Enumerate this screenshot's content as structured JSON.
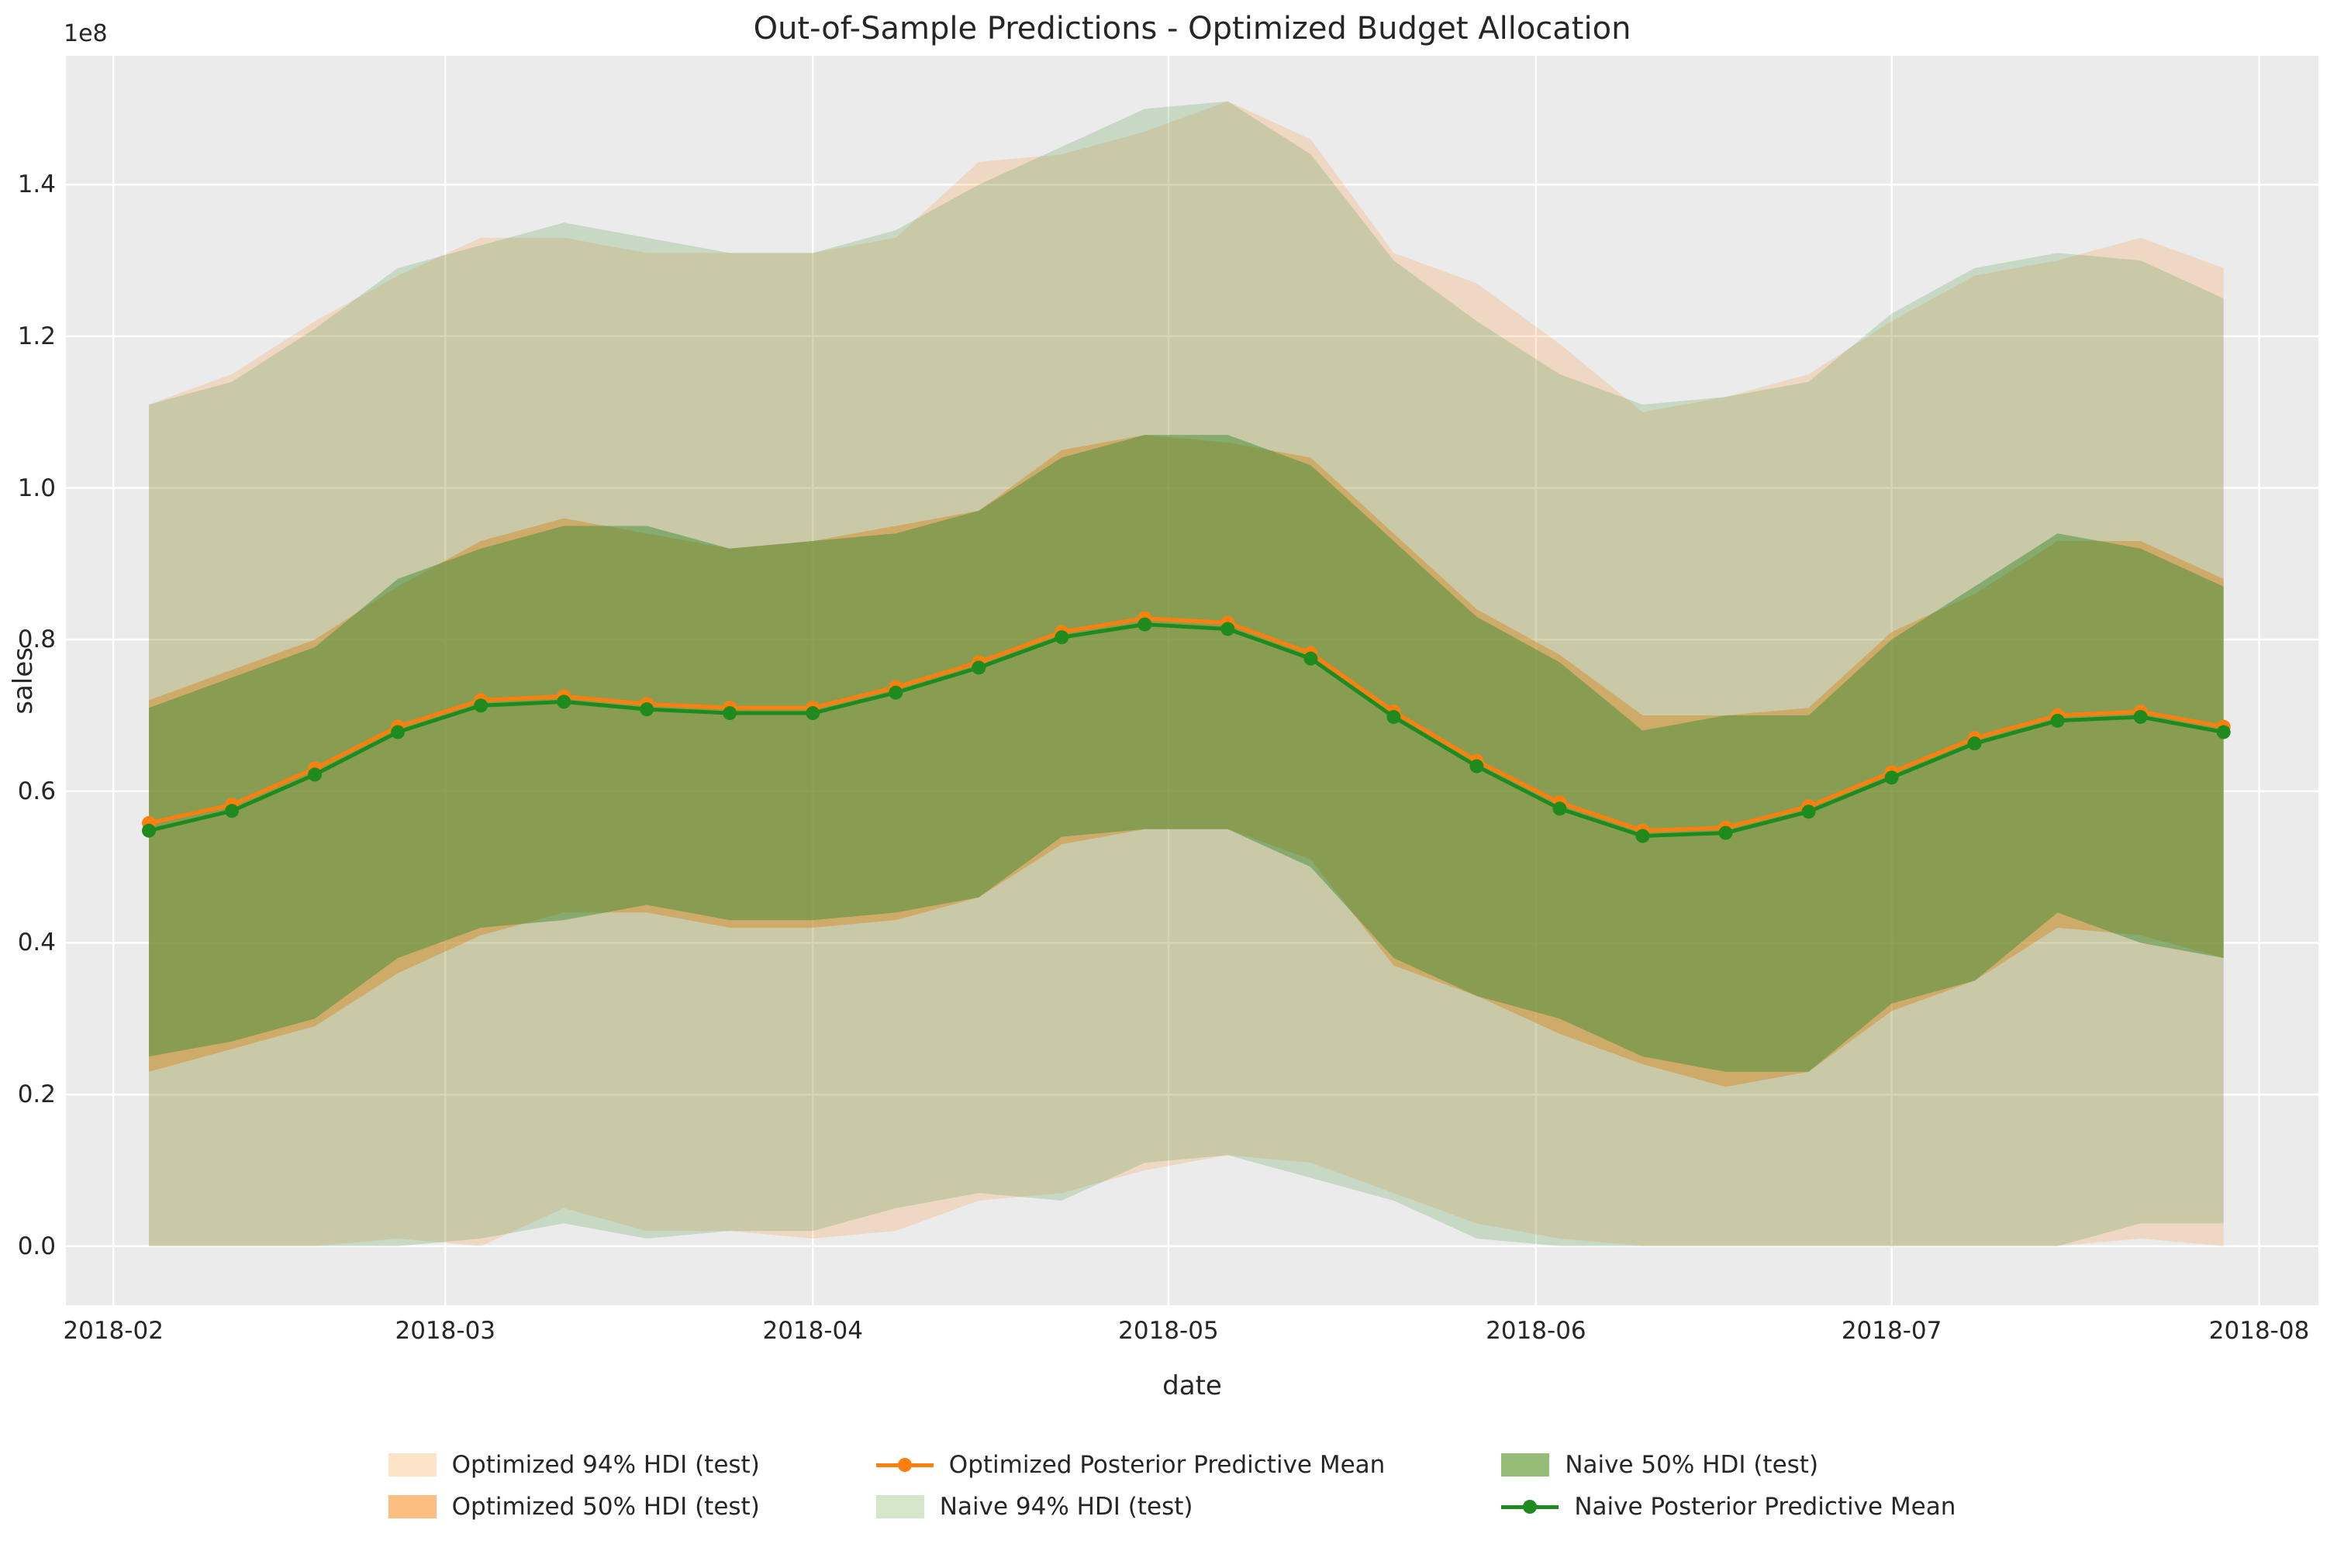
{
  "chart_data": {
    "type": "line",
    "title": "Out-of-Sample Predictions - Optimized Budget Allocation",
    "xlabel": "date",
    "ylabel": "sales",
    "y_offset_label": "1e8",
    "background_color": "#ebebeb",
    "grid_color": "#ffffff",
    "x_tick_labels": [
      "2018-02",
      "2018-03",
      "2018-04",
      "2018-05",
      "2018-06",
      "2018-07",
      "2018-08"
    ],
    "x_tick_days": [
      0,
      28,
      59,
      89,
      120,
      150,
      181
    ],
    "y_tick_labels": [
      "0.0",
      "0.2",
      "0.4",
      "0.6",
      "0.8",
      "1.0",
      "1.2",
      "1.4"
    ],
    "y_tick_values": [
      0.0,
      0.2,
      0.4,
      0.6,
      0.8,
      1.0,
      1.2,
      1.4
    ],
    "x_domain": [
      -4,
      186
    ],
    "y_domain": [
      -0.078,
      1.57
    ],
    "x_dates": [
      "2018-02-04",
      "2018-02-11",
      "2018-02-18",
      "2018-02-25",
      "2018-03-04",
      "2018-03-11",
      "2018-03-18",
      "2018-03-25",
      "2018-04-01",
      "2018-04-08",
      "2018-04-15",
      "2018-04-22",
      "2018-04-29",
      "2018-05-06",
      "2018-05-13",
      "2018-05-20",
      "2018-05-27",
      "2018-06-03",
      "2018-06-10",
      "2018-06-17",
      "2018-06-24",
      "2018-07-01",
      "2018-07-08",
      "2018-07-15",
      "2018-07-22",
      "2018-07-29"
    ],
    "x_days": [
      3,
      10,
      17,
      24,
      31,
      38,
      45,
      52,
      59,
      66,
      73,
      80,
      87,
      94,
      101,
      108,
      115,
      122,
      129,
      136,
      143,
      150,
      157,
      164,
      171,
      178
    ],
    "units": "1e8 sales",
    "series": [
      {
        "name": "Optimized Posterior Predictive Mean",
        "color": "#ff7f0e",
        "values": [
          0.558,
          0.582,
          0.63,
          0.685,
          0.72,
          0.725,
          0.715,
          0.71,
          0.71,
          0.737,
          0.77,
          0.81,
          0.828,
          0.822,
          0.782,
          0.705,
          0.64,
          0.585,
          0.548,
          0.552,
          0.58,
          0.625,
          0.67,
          0.7,
          0.705,
          0.685
        ]
      },
      {
        "name": "Naive Posterior Predictive Mean",
        "color": "#1f8b1f",
        "values": [
          0.548,
          0.574,
          0.622,
          0.678,
          0.713,
          0.718,
          0.708,
          0.703,
          0.703,
          0.73,
          0.763,
          0.803,
          0.82,
          0.814,
          0.775,
          0.698,
          0.633,
          0.577,
          0.541,
          0.545,
          0.573,
          0.618,
          0.663,
          0.693,
          0.698,
          0.678
        ]
      }
    ],
    "bands": [
      {
        "name": "Optimized 94% HDI (test)",
        "color": "#ff7f0e",
        "opacity": 0.18,
        "lower": [
          0.0,
          0.0,
          0.0,
          0.01,
          0.0,
          0.05,
          0.02,
          0.02,
          0.01,
          0.02,
          0.06,
          0.07,
          0.1,
          0.12,
          0.11,
          0.07,
          0.03,
          0.01,
          0.0,
          0.0,
          0.0,
          0.0,
          0.0,
          0.0,
          0.01,
          0.0
        ],
        "upper": [
          1.11,
          1.15,
          1.22,
          1.28,
          1.33,
          1.33,
          1.31,
          1.31,
          1.31,
          1.33,
          1.43,
          1.44,
          1.47,
          1.51,
          1.46,
          1.31,
          1.27,
          1.19,
          1.1,
          1.12,
          1.15,
          1.22,
          1.28,
          1.3,
          1.33,
          1.29
        ]
      },
      {
        "name": "Optimized 50% HDI (test)",
        "color": "#ff7f0e",
        "opacity": 0.45,
        "lower": [
          0.23,
          0.26,
          0.29,
          0.36,
          0.41,
          0.44,
          0.44,
          0.42,
          0.42,
          0.43,
          0.46,
          0.53,
          0.55,
          0.55,
          0.51,
          0.37,
          0.33,
          0.28,
          0.24,
          0.21,
          0.23,
          0.31,
          0.35,
          0.42,
          0.41,
          0.38
        ],
        "upper": [
          0.72,
          0.76,
          0.8,
          0.87,
          0.93,
          0.96,
          0.94,
          0.92,
          0.93,
          0.95,
          0.97,
          1.05,
          1.07,
          1.06,
          1.04,
          0.94,
          0.84,
          0.78,
          0.7,
          0.7,
          0.71,
          0.81,
          0.86,
          0.93,
          0.93,
          0.88
        ]
      },
      {
        "name": "Naive 94% HDI (test)",
        "color": "#5ba053",
        "opacity": 0.25,
        "lower": [
          0.0,
          0.0,
          0.0,
          0.0,
          0.01,
          0.03,
          0.01,
          0.02,
          0.02,
          0.05,
          0.07,
          0.06,
          0.11,
          0.12,
          0.09,
          0.06,
          0.01,
          0.0,
          0.0,
          0.0,
          0.0,
          0.0,
          0.0,
          0.0,
          0.03,
          0.03
        ],
        "upper": [
          1.11,
          1.14,
          1.21,
          1.29,
          1.32,
          1.35,
          1.33,
          1.31,
          1.31,
          1.34,
          1.4,
          1.45,
          1.5,
          1.51,
          1.44,
          1.3,
          1.22,
          1.15,
          1.11,
          1.12,
          1.14,
          1.23,
          1.29,
          1.31,
          1.3,
          1.25
        ]
      },
      {
        "name": "Naive 50% HDI (test)",
        "color": "#4e9140",
        "opacity": 0.55,
        "lower": [
          0.25,
          0.27,
          0.3,
          0.38,
          0.42,
          0.43,
          0.45,
          0.43,
          0.43,
          0.44,
          0.46,
          0.54,
          0.55,
          0.55,
          0.5,
          0.38,
          0.33,
          0.3,
          0.25,
          0.23,
          0.23,
          0.32,
          0.35,
          0.44,
          0.4,
          0.38
        ],
        "upper": [
          0.71,
          0.75,
          0.79,
          0.88,
          0.92,
          0.95,
          0.95,
          0.92,
          0.93,
          0.94,
          0.97,
          1.04,
          1.07,
          1.07,
          1.03,
          0.93,
          0.83,
          0.77,
          0.68,
          0.7,
          0.7,
          0.8,
          0.87,
          0.94,
          0.92,
          0.87
        ]
      }
    ],
    "legend": {
      "position": "bottom-center",
      "items": [
        {
          "label": "Optimized 94% HDI (test)",
          "type": "patch",
          "swatch": "#fde3c8"
        },
        {
          "label": "Optimized 50% HDI (test)",
          "type": "patch",
          "swatch": "#fbbd80"
        },
        {
          "label": "Optimized Posterior Predictive Mean",
          "type": "line",
          "swatch": "#ff7f0e"
        },
        {
          "label": "Naive 94% HDI (test)",
          "type": "patch",
          "swatch": "#d5e6ca"
        },
        {
          "label": "Naive 50% HDI (test)",
          "type": "patch",
          "swatch": "#95bd77"
        },
        {
          "label": "Naive Posterior Predictive Mean",
          "type": "line",
          "swatch": "#1f8b1f"
        }
      ]
    }
  }
}
